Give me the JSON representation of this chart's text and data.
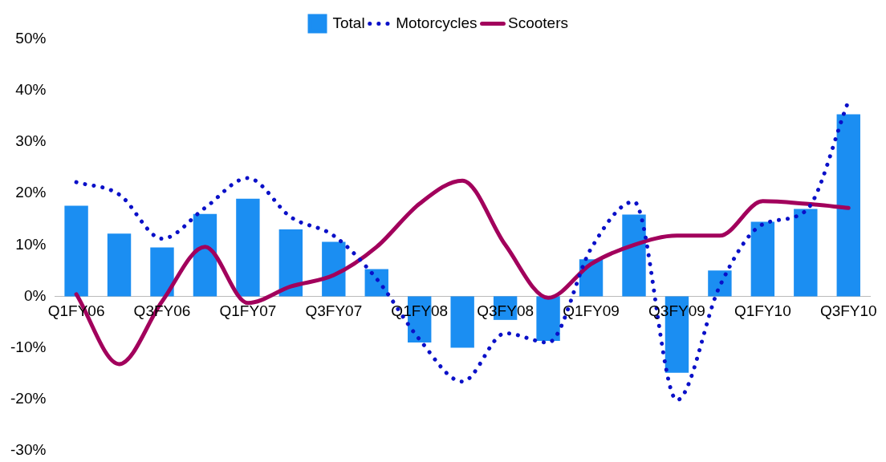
{
  "chart_data": {
    "type": "bar",
    "categories": [
      "Q1FY06",
      null,
      "Q3FY06",
      null,
      "Q1FY07",
      null,
      "Q3FY07",
      null,
      "Q1FY08",
      null,
      "Q3FY08",
      null,
      "Q1FY09",
      null,
      "Q3FY09",
      null,
      "Q1FY10",
      null,
      "Q3FY10"
    ],
    "series": [
      {
        "name": "Total",
        "color": "#1b8ef2",
        "values": [
          17.6,
          12.2,
          9.5,
          16,
          19,
          13,
          10.6,
          5.3,
          -9,
          -10,
          -4.6,
          -8.7,
          7.2,
          15.9,
          -14.9,
          5,
          14.5,
          17,
          35.4
        ]
      },
      {
        "name": "Motorcycles",
        "type": "line",
        "color": "#0a10c8",
        "line_style": "dotted",
        "values": [
          22.2,
          19.8,
          11.2,
          17.2,
          23,
          15.4,
          11.8,
          3.4,
          -8.4,
          -16.6,
          -7.2,
          -9,
          9.3,
          18.4,
          -20.2,
          2,
          14,
          16.6,
          38
        ]
      },
      {
        "name": "Scooters",
        "type": "line",
        "color": "#a2005c",
        "line_style": "solid",
        "values": [
          0.4,
          -13.2,
          -1,
          9.6,
          -1.3,
          1.9,
          4.1,
          9.6,
          18,
          22.5,
          10,
          -0.3,
          6.3,
          10,
          11.8,
          11.8,
          18.5,
          18,
          17.2
        ]
      }
    ],
    "ylim": [
      -30,
      50
    ],
    "yticks": [
      {
        "value": -30,
        "label": "-30%"
      },
      {
        "value": -20,
        "label": "-20%"
      },
      {
        "value": -10,
        "label": "-10%"
      },
      {
        "value": 0,
        "label": "0%"
      },
      {
        "value": 10,
        "label": "10%"
      },
      {
        "value": 20,
        "label": "20%"
      },
      {
        "value": 30,
        "label": "30%"
      },
      {
        "value": 40,
        "label": "40%"
      },
      {
        "value": 50,
        "label": "50%"
      }
    ],
    "grid": false,
    "legend": "top",
    "marker": "none"
  }
}
